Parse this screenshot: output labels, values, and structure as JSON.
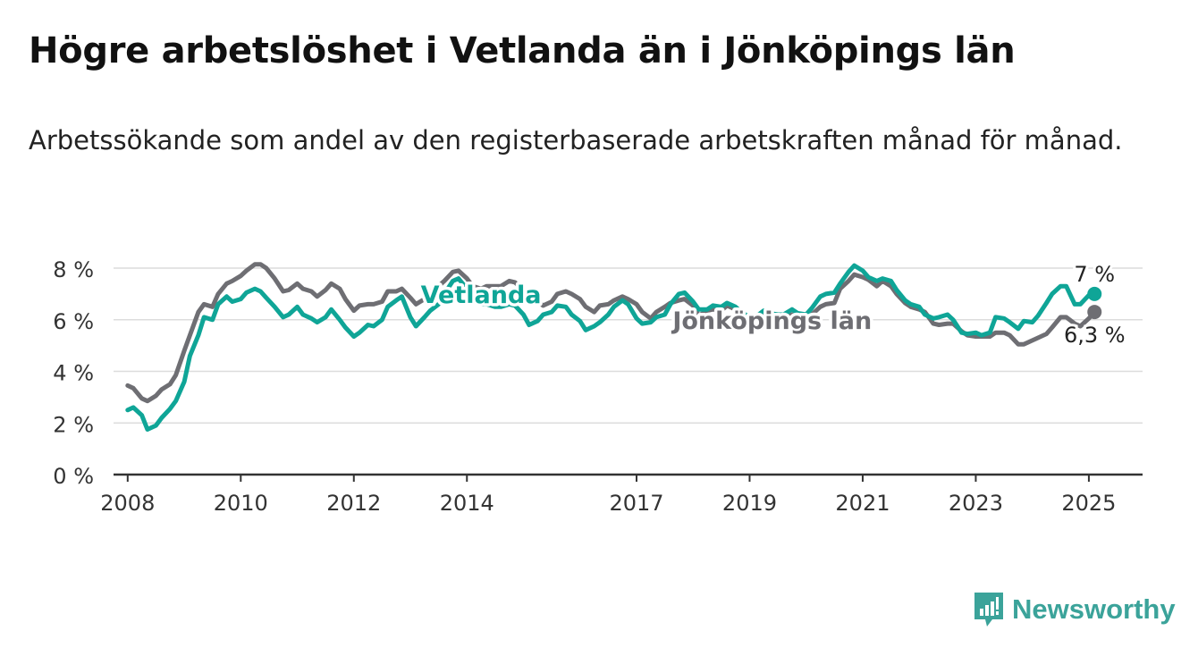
{
  "header": {
    "title": "Högre arbetslöshet i Vetlanda än i Jönköpings län",
    "subtitle": "Arbetssökande som andel av den registerbaserade arbetskraften månad för månad."
  },
  "brand": {
    "name": "Newsworthy",
    "icon": "newsworthy-logo-icon",
    "color": "#3ba39a"
  },
  "chart_data": {
    "type": "line",
    "x_unit": "year",
    "xlim": [
      2007.75,
      2025.95
    ],
    "ylim": [
      0,
      8
    ],
    "y_ticks": [
      0,
      2,
      4,
      6,
      8
    ],
    "y_tick_labels": [
      "0 %",
      "2 %",
      "4 %",
      "6 %",
      "8 %"
    ],
    "x_ticks": [
      2008,
      2010,
      2012,
      2014,
      2017,
      2019,
      2021,
      2023,
      2025
    ],
    "x_tick_labels": [
      "2008",
      "2010",
      "2012",
      "2014",
      "2017",
      "2019",
      "2021",
      "2023",
      "2025"
    ],
    "grid": "horizontal",
    "series": [
      {
        "name": "Jönköpings län",
        "color": "#6e6e73",
        "end_label": "6,3 %",
        "points": [
          [
            2008.0,
            3.45
          ],
          [
            2008.1,
            3.35
          ],
          [
            2008.25,
            2.95
          ],
          [
            2008.35,
            2.85
          ],
          [
            2008.5,
            3.05
          ],
          [
            2008.6,
            3.3
          ],
          [
            2008.75,
            3.5
          ],
          [
            2008.85,
            3.85
          ],
          [
            2009.0,
            4.8
          ],
          [
            2009.1,
            5.4
          ],
          [
            2009.25,
            6.3
          ],
          [
            2009.35,
            6.6
          ],
          [
            2009.5,
            6.5
          ],
          [
            2009.6,
            7.0
          ],
          [
            2009.75,
            7.4
          ],
          [
            2009.85,
            7.5
          ],
          [
            2010.0,
            7.7
          ],
          [
            2010.1,
            7.9
          ],
          [
            2010.25,
            8.15
          ],
          [
            2010.35,
            8.15
          ],
          [
            2010.45,
            8.0
          ],
          [
            2010.6,
            7.6
          ],
          [
            2010.75,
            7.1
          ],
          [
            2010.85,
            7.15
          ],
          [
            2011.0,
            7.4
          ],
          [
            2011.1,
            7.2
          ],
          [
            2011.25,
            7.1
          ],
          [
            2011.35,
            6.9
          ],
          [
            2011.5,
            7.15
          ],
          [
            2011.6,
            7.4
          ],
          [
            2011.75,
            7.2
          ],
          [
            2011.85,
            6.8
          ],
          [
            2012.0,
            6.35
          ],
          [
            2012.1,
            6.55
          ],
          [
            2012.25,
            6.6
          ],
          [
            2012.35,
            6.6
          ],
          [
            2012.5,
            6.7
          ],
          [
            2012.6,
            7.1
          ],
          [
            2012.75,
            7.1
          ],
          [
            2012.85,
            7.2
          ],
          [
            2013.0,
            6.85
          ],
          [
            2013.1,
            6.6
          ],
          [
            2013.25,
            6.8
          ],
          [
            2013.35,
            7.1
          ],
          [
            2013.5,
            7.3
          ],
          [
            2013.6,
            7.5
          ],
          [
            2013.75,
            7.85
          ],
          [
            2013.85,
            7.9
          ],
          [
            2014.0,
            7.6
          ],
          [
            2014.1,
            7.3
          ],
          [
            2014.25,
            7.2
          ],
          [
            2014.35,
            7.3
          ],
          [
            2014.5,
            7.3
          ],
          [
            2014.6,
            7.3
          ],
          [
            2014.75,
            7.5
          ],
          [
            2014.85,
            7.45
          ],
          [
            2015.0,
            7.15
          ],
          [
            2015.1,
            6.8
          ],
          [
            2015.25,
            6.7
          ],
          [
            2015.35,
            6.55
          ],
          [
            2015.5,
            6.7
          ],
          [
            2015.6,
            7.0
          ],
          [
            2015.75,
            7.1
          ],
          [
            2015.85,
            7.0
          ],
          [
            2016.0,
            6.8
          ],
          [
            2016.1,
            6.5
          ],
          [
            2016.25,
            6.3
          ],
          [
            2016.35,
            6.55
          ],
          [
            2016.5,
            6.6
          ],
          [
            2016.6,
            6.75
          ],
          [
            2016.75,
            6.9
          ],
          [
            2016.85,
            6.8
          ],
          [
            2017.0,
            6.6
          ],
          [
            2017.1,
            6.3
          ],
          [
            2017.25,
            6.05
          ],
          [
            2017.35,
            6.3
          ],
          [
            2017.5,
            6.5
          ],
          [
            2017.6,
            6.65
          ],
          [
            2017.75,
            6.75
          ],
          [
            2017.85,
            6.8
          ],
          [
            2018.0,
            6.55
          ],
          [
            2018.1,
            6.15
          ],
          [
            2018.25,
            6.35
          ],
          [
            2018.35,
            6.4
          ],
          [
            2018.5,
            6.35
          ],
          [
            2018.6,
            6.55
          ],
          [
            2018.75,
            6.4
          ],
          [
            2018.85,
            6.2
          ],
          [
            2019.0,
            6.1
          ],
          [
            2019.1,
            6.1
          ],
          [
            2019.25,
            6.2
          ],
          [
            2019.35,
            6.1
          ],
          [
            2019.5,
            6.0
          ],
          [
            2019.6,
            6.05
          ],
          [
            2019.75,
            6.2
          ],
          [
            2019.85,
            6.1
          ],
          [
            2020.0,
            6.0
          ],
          [
            2020.1,
            6.2
          ],
          [
            2020.25,
            6.5
          ],
          [
            2020.35,
            6.6
          ],
          [
            2020.5,
            6.65
          ],
          [
            2020.6,
            7.2
          ],
          [
            2020.75,
            7.5
          ],
          [
            2020.85,
            7.75
          ],
          [
            2021.0,
            7.65
          ],
          [
            2021.1,
            7.55
          ],
          [
            2021.25,
            7.3
          ],
          [
            2021.35,
            7.5
          ],
          [
            2021.5,
            7.3
          ],
          [
            2021.6,
            7.0
          ],
          [
            2021.75,
            6.65
          ],
          [
            2021.85,
            6.5
          ],
          [
            2022.0,
            6.4
          ],
          [
            2022.1,
            6.3
          ],
          [
            2022.25,
            5.85
          ],
          [
            2022.35,
            5.8
          ],
          [
            2022.5,
            5.85
          ],
          [
            2022.6,
            5.85
          ],
          [
            2022.75,
            5.55
          ],
          [
            2022.85,
            5.4
          ],
          [
            2023.0,
            5.35
          ],
          [
            2023.1,
            5.35
          ],
          [
            2023.25,
            5.35
          ],
          [
            2023.35,
            5.5
          ],
          [
            2023.5,
            5.5
          ],
          [
            2023.6,
            5.4
          ],
          [
            2023.75,
            5.05
          ],
          [
            2023.85,
            5.05
          ],
          [
            2024.0,
            5.2
          ],
          [
            2024.1,
            5.3
          ],
          [
            2024.25,
            5.45
          ],
          [
            2024.35,
            5.7
          ],
          [
            2024.5,
            6.1
          ],
          [
            2024.6,
            6.1
          ],
          [
            2024.75,
            5.85
          ],
          [
            2024.85,
            5.75
          ],
          [
            2025.0,
            6.05
          ],
          [
            2025.1,
            6.3
          ]
        ]
      },
      {
        "name": "Vetlanda",
        "color": "#0fa597",
        "end_label": "7 %",
        "points": [
          [
            2008.0,
            2.5
          ],
          [
            2008.1,
            2.6
          ],
          [
            2008.25,
            2.3
          ],
          [
            2008.35,
            1.75
          ],
          [
            2008.5,
            1.9
          ],
          [
            2008.6,
            2.2
          ],
          [
            2008.75,
            2.55
          ],
          [
            2008.85,
            2.85
          ],
          [
            2009.0,
            3.6
          ],
          [
            2009.1,
            4.6
          ],
          [
            2009.25,
            5.4
          ],
          [
            2009.35,
            6.1
          ],
          [
            2009.5,
            6.0
          ],
          [
            2009.6,
            6.6
          ],
          [
            2009.75,
            6.9
          ],
          [
            2009.85,
            6.7
          ],
          [
            2010.0,
            6.8
          ],
          [
            2010.1,
            7.05
          ],
          [
            2010.25,
            7.2
          ],
          [
            2010.35,
            7.1
          ],
          [
            2010.45,
            6.85
          ],
          [
            2010.6,
            6.5
          ],
          [
            2010.75,
            6.1
          ],
          [
            2010.85,
            6.2
          ],
          [
            2011.0,
            6.5
          ],
          [
            2011.1,
            6.2
          ],
          [
            2011.25,
            6.05
          ],
          [
            2011.35,
            5.9
          ],
          [
            2011.5,
            6.1
          ],
          [
            2011.6,
            6.4
          ],
          [
            2011.75,
            6.0
          ],
          [
            2011.85,
            5.7
          ],
          [
            2012.0,
            5.35
          ],
          [
            2012.1,
            5.5
          ],
          [
            2012.25,
            5.8
          ],
          [
            2012.35,
            5.75
          ],
          [
            2012.5,
            6.0
          ],
          [
            2012.6,
            6.5
          ],
          [
            2012.75,
            6.75
          ],
          [
            2012.85,
            6.9
          ],
          [
            2013.0,
            6.1
          ],
          [
            2013.1,
            5.75
          ],
          [
            2013.25,
            6.1
          ],
          [
            2013.35,
            6.35
          ],
          [
            2013.5,
            6.6
          ],
          [
            2013.6,
            7.0
          ],
          [
            2013.75,
            7.5
          ],
          [
            2013.85,
            7.6
          ],
          [
            2014.0,
            7.2
          ],
          [
            2014.1,
            6.8
          ],
          [
            2014.25,
            6.6
          ],
          [
            2014.35,
            6.6
          ],
          [
            2014.5,
            6.5
          ],
          [
            2014.6,
            6.5
          ],
          [
            2014.75,
            6.6
          ],
          [
            2014.85,
            6.55
          ],
          [
            2015.0,
            6.2
          ],
          [
            2015.1,
            5.8
          ],
          [
            2015.25,
            5.95
          ],
          [
            2015.35,
            6.2
          ],
          [
            2015.5,
            6.3
          ],
          [
            2015.6,
            6.55
          ],
          [
            2015.75,
            6.5
          ],
          [
            2015.85,
            6.2
          ],
          [
            2016.0,
            5.95
          ],
          [
            2016.1,
            5.6
          ],
          [
            2016.25,
            5.75
          ],
          [
            2016.35,
            5.9
          ],
          [
            2016.5,
            6.2
          ],
          [
            2016.6,
            6.5
          ],
          [
            2016.75,
            6.75
          ],
          [
            2016.85,
            6.6
          ],
          [
            2017.0,
            6.05
          ],
          [
            2017.1,
            5.85
          ],
          [
            2017.25,
            5.9
          ],
          [
            2017.35,
            6.1
          ],
          [
            2017.5,
            6.2
          ],
          [
            2017.6,
            6.6
          ],
          [
            2017.75,
            7.0
          ],
          [
            2017.85,
            7.05
          ],
          [
            2018.0,
            6.7
          ],
          [
            2018.1,
            6.4
          ],
          [
            2018.25,
            6.4
          ],
          [
            2018.35,
            6.55
          ],
          [
            2018.5,
            6.5
          ],
          [
            2018.6,
            6.65
          ],
          [
            2018.75,
            6.5
          ],
          [
            2018.85,
            6.3
          ],
          [
            2019.0,
            6.1
          ],
          [
            2019.1,
            6.1
          ],
          [
            2019.25,
            6.35
          ],
          [
            2019.35,
            6.25
          ],
          [
            2019.5,
            6.2
          ],
          [
            2019.6,
            6.2
          ],
          [
            2019.75,
            6.4
          ],
          [
            2019.85,
            6.25
          ],
          [
            2020.0,
            6.2
          ],
          [
            2020.1,
            6.45
          ],
          [
            2020.25,
            6.9
          ],
          [
            2020.35,
            7.0
          ],
          [
            2020.5,
            7.05
          ],
          [
            2020.6,
            7.4
          ],
          [
            2020.75,
            7.85
          ],
          [
            2020.85,
            8.1
          ],
          [
            2021.0,
            7.9
          ],
          [
            2021.1,
            7.65
          ],
          [
            2021.25,
            7.5
          ],
          [
            2021.35,
            7.6
          ],
          [
            2021.5,
            7.5
          ],
          [
            2021.6,
            7.15
          ],
          [
            2021.75,
            6.75
          ],
          [
            2021.85,
            6.6
          ],
          [
            2022.0,
            6.5
          ],
          [
            2022.1,
            6.2
          ],
          [
            2022.25,
            6.05
          ],
          [
            2022.35,
            6.1
          ],
          [
            2022.5,
            6.2
          ],
          [
            2022.6,
            6.0
          ],
          [
            2022.75,
            5.5
          ],
          [
            2022.85,
            5.45
          ],
          [
            2023.0,
            5.5
          ],
          [
            2023.1,
            5.4
          ],
          [
            2023.25,
            5.5
          ],
          [
            2023.35,
            6.1
          ],
          [
            2023.5,
            6.05
          ],
          [
            2023.6,
            5.9
          ],
          [
            2023.75,
            5.65
          ],
          [
            2023.85,
            5.95
          ],
          [
            2024.0,
            5.9
          ],
          [
            2024.1,
            6.15
          ],
          [
            2024.25,
            6.65
          ],
          [
            2024.35,
            7.0
          ],
          [
            2024.5,
            7.3
          ],
          [
            2024.6,
            7.3
          ],
          [
            2024.75,
            6.6
          ],
          [
            2024.85,
            6.6
          ],
          [
            2025.0,
            6.95
          ],
          [
            2025.1,
            7.0
          ]
        ]
      }
    ],
    "annotations": [
      {
        "text": "Vetlanda",
        "series": "Vetlanda",
        "at": [
          2014.25,
          6.65
        ]
      },
      {
        "text": "Jönköpings län",
        "series": "Jönköpings län",
        "at": [
          2019.4,
          5.65
        ]
      }
    ]
  }
}
